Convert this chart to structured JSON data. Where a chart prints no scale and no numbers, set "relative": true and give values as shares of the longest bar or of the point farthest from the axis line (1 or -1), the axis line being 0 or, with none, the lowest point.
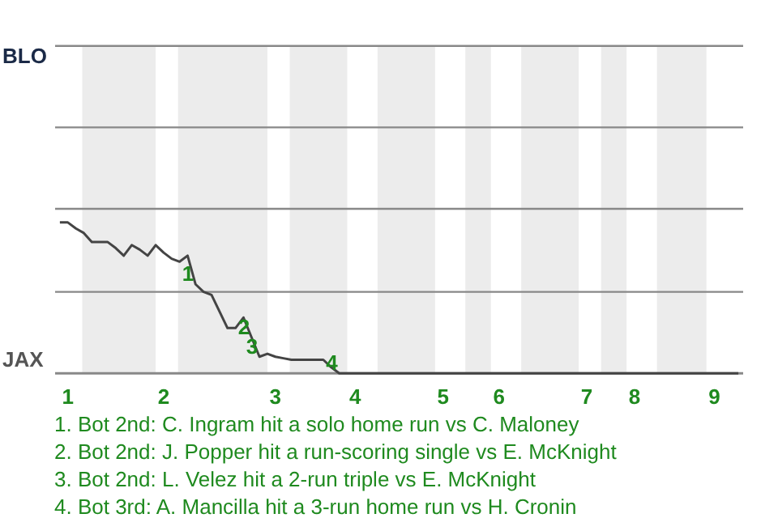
{
  "chart_data": {
    "type": "line",
    "relative": true,
    "categories": [
      null,
      "1",
      null,
      null,
      null,
      null,
      null,
      null,
      null,
      null,
      null,
      null,
      null,
      "2",
      null,
      null,
      null,
      null,
      null,
      null,
      null,
      null,
      null,
      null,
      null,
      null,
      null,
      "3",
      null,
      null,
      null,
      null,
      null,
      null,
      null,
      null,
      null,
      "4",
      null,
      null,
      null,
      null,
      null,
      null,
      null,
      null,
      null,
      null,
      "5",
      null,
      null,
      null,
      null,
      null,
      null,
      "6",
      null,
      null,
      null,
      null,
      null,
      null,
      null,
      null,
      null,
      null,
      "7",
      null,
      null,
      null,
      null,
      null,
      "8",
      null,
      null,
      null,
      null,
      null,
      null,
      null,
      null,
      null,
      "9",
      null,
      null,
      null
    ],
    "series": [
      {
        "color": "#444444",
        "values": [
          1,
          1,
          0.96,
          0.93,
          0.87,
          0.87,
          0.87,
          0.83,
          0.78,
          0.85,
          0.82,
          0.78,
          0.85,
          0.8,
          0.76,
          0.74,
          0.78,
          0.59,
          0.54,
          0.52,
          0.41,
          0.3,
          0.3,
          0.37,
          0.24,
          0.11,
          0.13,
          0.11,
          0.1,
          0.09,
          0.09,
          0.09,
          0.09,
          0.09,
          0.04,
          0,
          0,
          0,
          0,
          0,
          0,
          0,
          0,
          0,
          0,
          0,
          0,
          0,
          0,
          0,
          0,
          0,
          0,
          0,
          0,
          0,
          0,
          0,
          0,
          0,
          0,
          0,
          0,
          0,
          0,
          0,
          0,
          0,
          0,
          0,
          0,
          0,
          0,
          0,
          0,
          0,
          0,
          0,
          0,
          0,
          0,
          0,
          0,
          0,
          0,
          0
        ]
      }
    ],
    "marker": "none",
    "line_style": "solid",
    "ref_lines": [
      {
        "axis": "y",
        "value": 0.54,
        "color": "#888888"
      },
      {
        "axis": "y",
        "value": 1.09,
        "color": "#888888"
      },
      {
        "axis": "y",
        "value": 1.63,
        "color": "#888888"
      },
      {
        "axis": "y",
        "value": 2.17,
        "color": "#888888"
      }
    ],
    "annotations": [
      "BLO",
      "JAX",
      {
        "text": "1",
        "y": 0.59
      },
      {
        "text": "2",
        "y": 0.24
      },
      {
        "text": "3",
        "y": 0.11
      },
      {
        "text": "4",
        "y": 0
      },
      "1. Bot 2nd: C. Ingram hit a solo home run vs C. Maloney",
      "2. Bot 2nd: J. Popper hit a run-scoring single vs E. McKnight",
      "3. Bot 2nd: L. Velez hit a 2-run triple vs E. McKnight",
      "4. Bot 3rd: A. Mancilla hit a 3-run home run vs H. Cronin"
    ]
  }
}
